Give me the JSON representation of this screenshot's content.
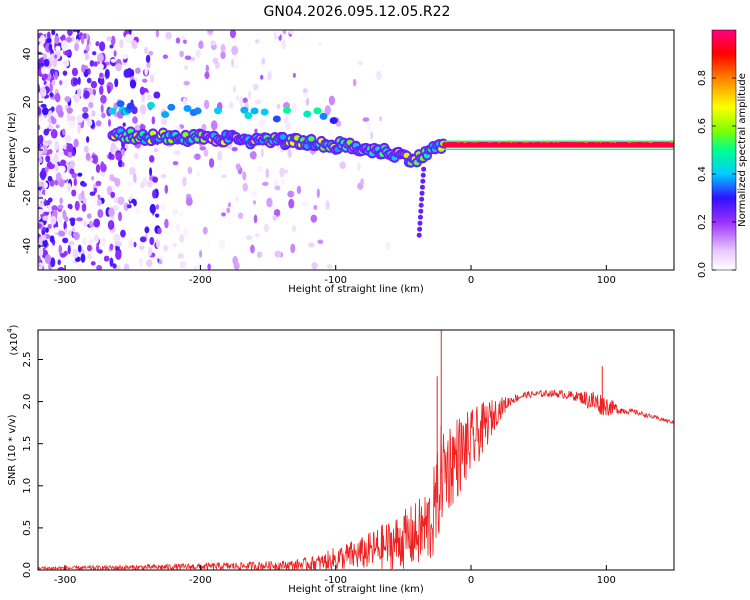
{
  "title": "GN04.2026.095.12.05.R22",
  "chart_data": [
    {
      "type": "heatmap",
      "name": "spectrogram",
      "xlabel": "Height of straight line (km)",
      "ylabel": "Frequency (Hz)",
      "xlim": [
        -320,
        150
      ],
      "ylim": [
        -50,
        50
      ],
      "xticks": [
        -300,
        -200,
        -100,
        0,
        100
      ],
      "yticks": [
        -40,
        -20,
        0,
        20,
        40
      ],
      "colorbar": {
        "label": "Normalized spectral amplitude",
        "range": [
          0,
          1
        ],
        "ticks": [
          0.0,
          0.2,
          0.4,
          0.6,
          0.8
        ],
        "colors": [
          "#ffffff",
          "#e8c8ff",
          "#9a30ff",
          "#3010ff",
          "#00ccff",
          "#00ff90",
          "#80ff00",
          "#ffff00",
          "#ff8000",
          "#ff0000",
          "#ff0080"
        ]
      },
      "features": [
        {
          "name": "main signal ridge",
          "x": [
            -260,
            -200,
            -150,
            -100,
            -60,
            -40,
            -30,
            -20,
            0,
            40,
            80,
            150
          ],
          "freq": [
            6,
            5,
            4,
            2,
            -1,
            -4,
            0,
            2,
            2,
            2,
            2,
            2
          ]
        },
        {
          "name": "strong constant tone",
          "x_range": [
            -20,
            150
          ],
          "freq": 2,
          "amplitude": 0.95
        },
        {
          "name": "noise region",
          "x_range": [
            -320,
            -100
          ],
          "freq_range": [
            -50,
            50
          ],
          "amplitude": 0.3
        }
      ]
    },
    {
      "type": "line",
      "name": "snr",
      "xlabel": "Height of straight line (km)",
      "ylabel": "SNR (10 * v/v)",
      "scale_label": "(x10",
      "scale_exp": "4",
      "xlim": [
        -320,
        150
      ],
      "ylim": [
        0,
        2.85
      ],
      "xticks": [
        -300,
        -200,
        -100,
        0,
        100
      ],
      "yticks": [
        0.0,
        0.5,
        1.0,
        1.5,
        2.0,
        2.5
      ],
      "color": "#ee2222",
      "envelope": {
        "x": [
          -320,
          -250,
          -200,
          -160,
          -130,
          -110,
          -100,
          -80,
          -60,
          -40,
          -30,
          -25,
          -22,
          -10,
          0,
          10,
          20,
          30,
          40,
          60,
          80,
          90,
          100,
          110,
          120,
          150
        ],
        "base": [
          0.02,
          0.03,
          0.04,
          0.05,
          0.06,
          0.09,
          0.13,
          0.2,
          0.3,
          0.42,
          0.55,
          0.8,
          1.15,
          1.35,
          1.5,
          1.7,
          1.9,
          2.02,
          2.08,
          2.1,
          2.06,
          2.0,
          1.95,
          1.9,
          1.88,
          1.75
        ],
        "amp": [
          0.02,
          0.03,
          0.04,
          0.05,
          0.06,
          0.1,
          0.15,
          0.2,
          0.3,
          0.4,
          0.5,
          0.6,
          0.6,
          0.5,
          0.4,
          0.3,
          0.15,
          0.05,
          0.04,
          0.04,
          0.06,
          0.15,
          0.12,
          0.05,
          0.03,
          0.02
        ]
      },
      "peaks": [
        {
          "x": -22,
          "y": 2.85
        },
        {
          "x": -25,
          "y": 2.3
        },
        {
          "x": 97,
          "y": 2.42
        }
      ]
    }
  ]
}
